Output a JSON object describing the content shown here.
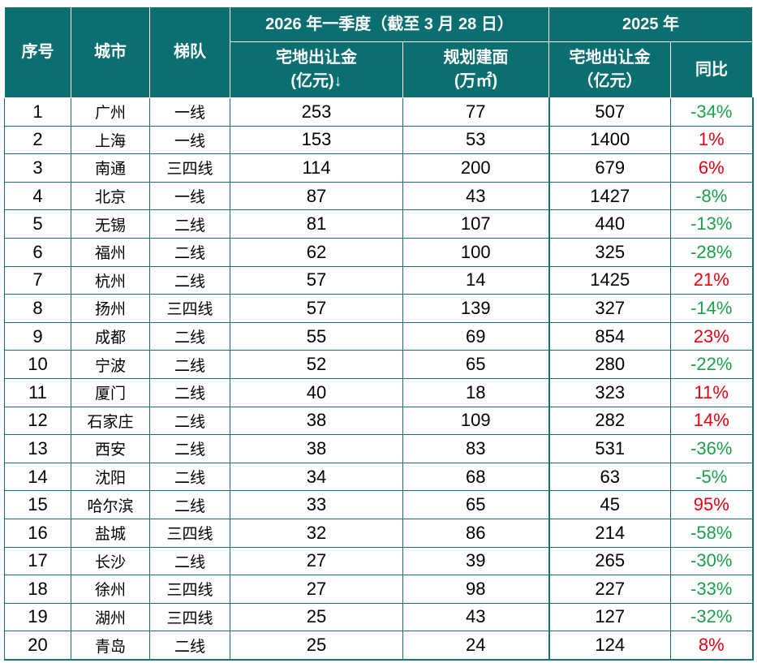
{
  "header": {
    "rank": "序号",
    "city": "城市",
    "tier": "梯队",
    "group_2026": "2026 年一季度（截至 3 月 28 日）",
    "group_2025": "2025 年",
    "land_revenue_2026": "宅地出让金",
    "land_revenue_2026_unit": "(亿元)↓",
    "planned_area": "规划建面",
    "planned_area_unit": "(万㎡)",
    "land_revenue_2025": "宅地出让金",
    "land_revenue_2025_unit": "（亿元）",
    "yoy": "同比"
  },
  "colors": {
    "header_bg": "#0b6e70",
    "positive": "#e60012",
    "negative": "#1aa04a"
  },
  "rows": [
    {
      "rank": "1",
      "city": "广州",
      "tier": "一线",
      "rev2026": "253",
      "area": "77",
      "rev2025": "507",
      "yoy": "-34%"
    },
    {
      "rank": "2",
      "city": "上海",
      "tier": "一线",
      "rev2026": "153",
      "area": "53",
      "rev2025": "1400",
      "yoy": "1%"
    },
    {
      "rank": "3",
      "city": "南通",
      "tier": "三四线",
      "rev2026": "114",
      "area": "200",
      "rev2025": "679",
      "yoy": "6%"
    },
    {
      "rank": "4",
      "city": "北京",
      "tier": "一线",
      "rev2026": "87",
      "area": "43",
      "rev2025": "1427",
      "yoy": "-8%"
    },
    {
      "rank": "5",
      "city": "无锡",
      "tier": "二线",
      "rev2026": "81",
      "area": "107",
      "rev2025": "440",
      "yoy": "-13%"
    },
    {
      "rank": "6",
      "city": "福州",
      "tier": "二线",
      "rev2026": "62",
      "area": "100",
      "rev2025": "325",
      "yoy": "-28%"
    },
    {
      "rank": "7",
      "city": "杭州",
      "tier": "二线",
      "rev2026": "57",
      "area": "14",
      "rev2025": "1425",
      "yoy": "21%"
    },
    {
      "rank": "8",
      "city": "扬州",
      "tier": "三四线",
      "rev2026": "57",
      "area": "139",
      "rev2025": "327",
      "yoy": "-14%"
    },
    {
      "rank": "9",
      "city": "成都",
      "tier": "二线",
      "rev2026": "55",
      "area": "69",
      "rev2025": "854",
      "yoy": "23%"
    },
    {
      "rank": "10",
      "city": "宁波",
      "tier": "二线",
      "rev2026": "52",
      "area": "65",
      "rev2025": "280",
      "yoy": "-22%"
    },
    {
      "rank": "11",
      "city": "厦门",
      "tier": "二线",
      "rev2026": "40",
      "area": "18",
      "rev2025": "323",
      "yoy": "11%"
    },
    {
      "rank": "12",
      "city": "石家庄",
      "tier": "二线",
      "rev2026": "38",
      "area": "109",
      "rev2025": "282",
      "yoy": "14%"
    },
    {
      "rank": "13",
      "city": "西安",
      "tier": "二线",
      "rev2026": "38",
      "area": "83",
      "rev2025": "531",
      "yoy": "-36%"
    },
    {
      "rank": "14",
      "city": "沈阳",
      "tier": "二线",
      "rev2026": "34",
      "area": "68",
      "rev2025": "63",
      "yoy": "-5%"
    },
    {
      "rank": "15",
      "city": "哈尔滨",
      "tier": "二线",
      "rev2026": "33",
      "area": "65",
      "rev2025": "45",
      "yoy": "95%"
    },
    {
      "rank": "16",
      "city": "盐城",
      "tier": "三四线",
      "rev2026": "32",
      "area": "86",
      "rev2025": "214",
      "yoy": "-58%"
    },
    {
      "rank": "17",
      "city": "长沙",
      "tier": "二线",
      "rev2026": "27",
      "area": "39",
      "rev2025": "265",
      "yoy": "-30%"
    },
    {
      "rank": "18",
      "city": "徐州",
      "tier": "三四线",
      "rev2026": "27",
      "area": "98",
      "rev2025": "227",
      "yoy": "-33%"
    },
    {
      "rank": "19",
      "city": "湖州",
      "tier": "三四线",
      "rev2026": "25",
      "area": "43",
      "rev2025": "127",
      "yoy": "-32%"
    },
    {
      "rank": "20",
      "city": "青岛",
      "tier": "二线",
      "rev2026": "25",
      "area": "24",
      "rev2025": "124",
      "yoy": "8%"
    }
  ]
}
